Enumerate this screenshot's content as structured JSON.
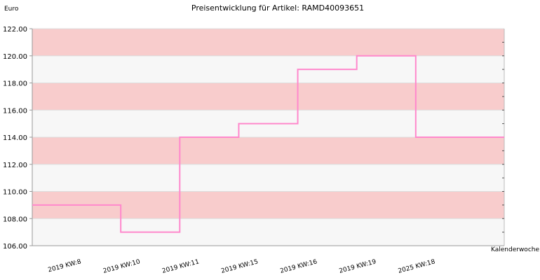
{
  "chart_data": {
    "type": "line",
    "step": true,
    "title": "Preisentwicklung für Artikel: RAMD40093651",
    "ylabel": "Euro",
    "xlabel": "Kalenderwoche",
    "categories": [
      "2019 KW:8",
      "2019 KW:10",
      "2019 KW:11",
      "2019 KW:15",
      "2019 KW:16",
      "2019 KW:19",
      "2025 KW:18"
    ],
    "series": [
      {
        "values": [
          109.0,
          107.0,
          114.0,
          115.0,
          119.0,
          120.0,
          114.0
        ]
      }
    ],
    "ylim": [
      106.0,
      122.0
    ],
    "yticks": [
      "106.00",
      "108.00",
      "110.00",
      "112.00",
      "114.00",
      "116.00",
      "118.00",
      "120.00",
      "122.00"
    ],
    "grid": true,
    "band_colors": [
      "#f7f7f7",
      "#f8cccc"
    ],
    "line_color": "#ff88cc"
  }
}
